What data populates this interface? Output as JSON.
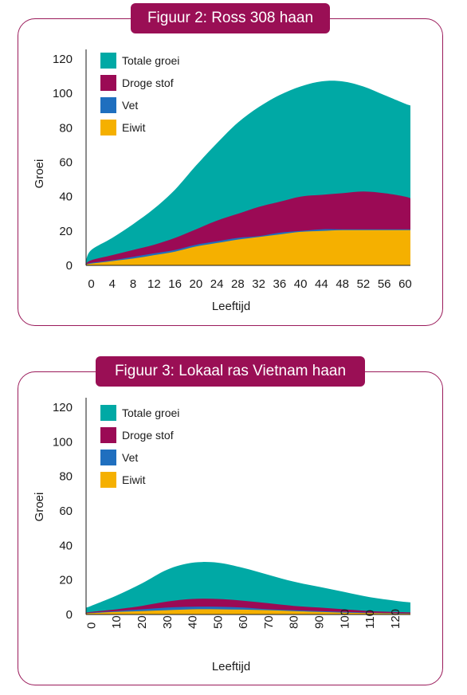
{
  "colors": {
    "panel_border": "#9a1a5a",
    "title_bg": "#9a0f55",
    "totale_groei": "#00a9a5",
    "droge_stof": "#9b0a55",
    "vet": "#1f6fbf",
    "vet_overlap": "#7a4aa8",
    "eiwit": "#f5b000"
  },
  "chart_data": [
    {
      "type": "area",
      "title": "Figuur 2: Ross 308 haan",
      "xlabel": "Leeftijd",
      "ylabel": "Groei",
      "x_ticks": [
        "0",
        "4",
        "8",
        "12",
        "16",
        "20",
        "24",
        "28",
        "32",
        "36",
        "40",
        "44",
        "48",
        "52",
        "56",
        "60"
      ],
      "y_ticks": [
        "0",
        "20",
        "40",
        "60",
        "80",
        "100",
        "120"
      ],
      "xlim": [
        -1,
        61
      ],
      "ylim": [
        0,
        120
      ],
      "legend_position": "top-left",
      "x": [
        -1,
        0,
        4,
        8,
        12,
        16,
        20,
        24,
        28,
        32,
        36,
        40,
        44,
        48,
        52,
        56,
        60,
        61
      ],
      "series": [
        {
          "name": "Totale groei",
          "color_key": "totale_groei",
          "values": [
            3,
            9,
            16,
            24,
            33,
            44,
            58,
            71,
            83,
            92,
            99,
            104,
            107,
            107,
            104,
            99,
            94,
            93
          ]
        },
        {
          "name": "Droge stof",
          "color_key": "droge_stof",
          "values": [
            1,
            3,
            6,
            9,
            12,
            16,
            21,
            26,
            30,
            34,
            37,
            40,
            41,
            42,
            43,
            42,
            40,
            39
          ]
        },
        {
          "name": "Vet",
          "color_key": "vet",
          "values": [
            0.5,
            1.5,
            3,
            5,
            7,
            9,
            12,
            14,
            16,
            17,
            19,
            20,
            21,
            21,
            21,
            21,
            21,
            21
          ]
        },
        {
          "name": "Eiwit",
          "color_key": "eiwit",
          "values": [
            0.5,
            1,
            2.5,
            4,
            6,
            8,
            11,
            13,
            15,
            16.5,
            18,
            19.5,
            20,
            20.5,
            20.5,
            20.5,
            20.5,
            20.5
          ]
        }
      ]
    },
    {
      "type": "area",
      "title": "Figuur 3: Lokaal ras Vietnam haan",
      "xlabel": "Leeftijd",
      "ylabel": "Groei",
      "x_ticks": [
        "0",
        "10",
        "20",
        "30",
        "40",
        "50",
        "60",
        "70",
        "80",
        "90",
        "100",
        "110",
        "120"
      ],
      "y_ticks": [
        "0",
        "20",
        "40",
        "60",
        "80",
        "100",
        "120"
      ],
      "xlim": [
        -2,
        126
      ],
      "ylim": [
        0,
        120
      ],
      "legend_position": "top-left",
      "x": [
        -2,
        0,
        10,
        20,
        30,
        40,
        50,
        60,
        70,
        80,
        90,
        100,
        110,
        120,
        126
      ],
      "series": [
        {
          "name": "Totale groei",
          "color_key": "totale_groei",
          "values": [
            4,
            5,
            11,
            18,
            26,
            30,
            30,
            27,
            23,
            19,
            16,
            13,
            10,
            8,
            7
          ]
        },
        {
          "name": "Droge stof",
          "color_key": "droge_stof",
          "values": [
            1,
            1.5,
            3,
            5,
            7.5,
            9,
            9,
            8,
            6.5,
            5,
            4,
            3,
            2,
            1.5,
            1.2
          ]
        },
        {
          "name": "Vet",
          "color_key": "vet",
          "values": [
            0.5,
            1,
            2,
            3,
            4,
            4.5,
            4.5,
            4,
            3,
            2.5,
            2,
            1.5,
            1,
            0.8,
            0.6
          ]
        },
        {
          "name": "Eiwit",
          "color_key": "eiwit",
          "values": [
            0.5,
            0.8,
            1.5,
            2,
            2.5,
            3,
            3,
            2.8,
            2.5,
            2,
            1.5,
            1,
            0.8,
            0.6,
            0.5
          ]
        }
      ]
    }
  ]
}
